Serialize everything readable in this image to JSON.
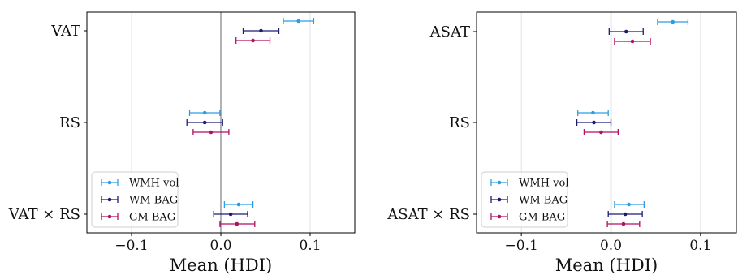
{
  "chart_data": [
    {
      "type": "errorbar",
      "xlabel": "Mean (HDI)",
      "xlim": [
        -0.15,
        0.15
      ],
      "xticks": [
        -0.1,
        0.0,
        0.1
      ],
      "xtick_labels": [
        "−0.1",
        "0.0",
        "0.1"
      ],
      "grid": "vertical",
      "reference_line": 0.0,
      "legend_position": "lower-left",
      "categories": [
        "VAT",
        "RS",
        "VAT × RS"
      ],
      "series": [
        {
          "name": "WMH vol",
          "color": "#2b9de6",
          "mean": [
            0.087,
            -0.018,
            0.02
          ],
          "lower": [
            0.07,
            -0.035,
            0.004
          ],
          "upper": [
            0.104,
            -0.001,
            0.036
          ]
        },
        {
          "name": "WM BAG",
          "color": "#1d1a74",
          "mean": [
            0.045,
            -0.018,
            0.011
          ],
          "lower": [
            0.025,
            -0.038,
            -0.008
          ],
          "upper": [
            0.065,
            0.002,
            0.03
          ]
        },
        {
          "name": "GM BAG",
          "color": "#b30f63",
          "mean": [
            0.036,
            -0.011,
            0.018
          ],
          "lower": [
            0.017,
            -0.031,
            -0.001
          ],
          "upper": [
            0.055,
            0.009,
            0.038
          ]
        }
      ]
    },
    {
      "type": "errorbar",
      "xlabel": "Mean (HDI)",
      "xlim": [
        -0.15,
        0.14
      ],
      "xticks": [
        -0.1,
        0.0,
        0.1
      ],
      "xtick_labels": [
        "−0.1",
        "0.0",
        "0.1"
      ],
      "grid": "vertical",
      "reference_line": 0.0,
      "legend_position": "lower-left",
      "categories": [
        "ASAT",
        "RS",
        "ASAT × RS"
      ],
      "series": [
        {
          "name": "WMH vol",
          "color": "#2b9de6",
          "mean": [
            0.069,
            -0.02,
            0.02
          ],
          "lower": [
            0.052,
            -0.037,
            0.004
          ],
          "upper": [
            0.086,
            -0.003,
            0.037
          ]
        },
        {
          "name": "WM BAG",
          "color": "#1d1a74",
          "mean": [
            0.017,
            -0.019,
            0.016
          ],
          "lower": [
            -0.002,
            -0.038,
            -0.003
          ],
          "upper": [
            0.036,
            0.0,
            0.035
          ]
        },
        {
          "name": "GM BAG",
          "color": "#b30f63",
          "mean": [
            0.024,
            -0.011,
            0.014
          ],
          "lower": [
            0.004,
            -0.03,
            -0.004
          ],
          "upper": [
            0.044,
            0.008,
            0.032
          ]
        }
      ]
    }
  ]
}
